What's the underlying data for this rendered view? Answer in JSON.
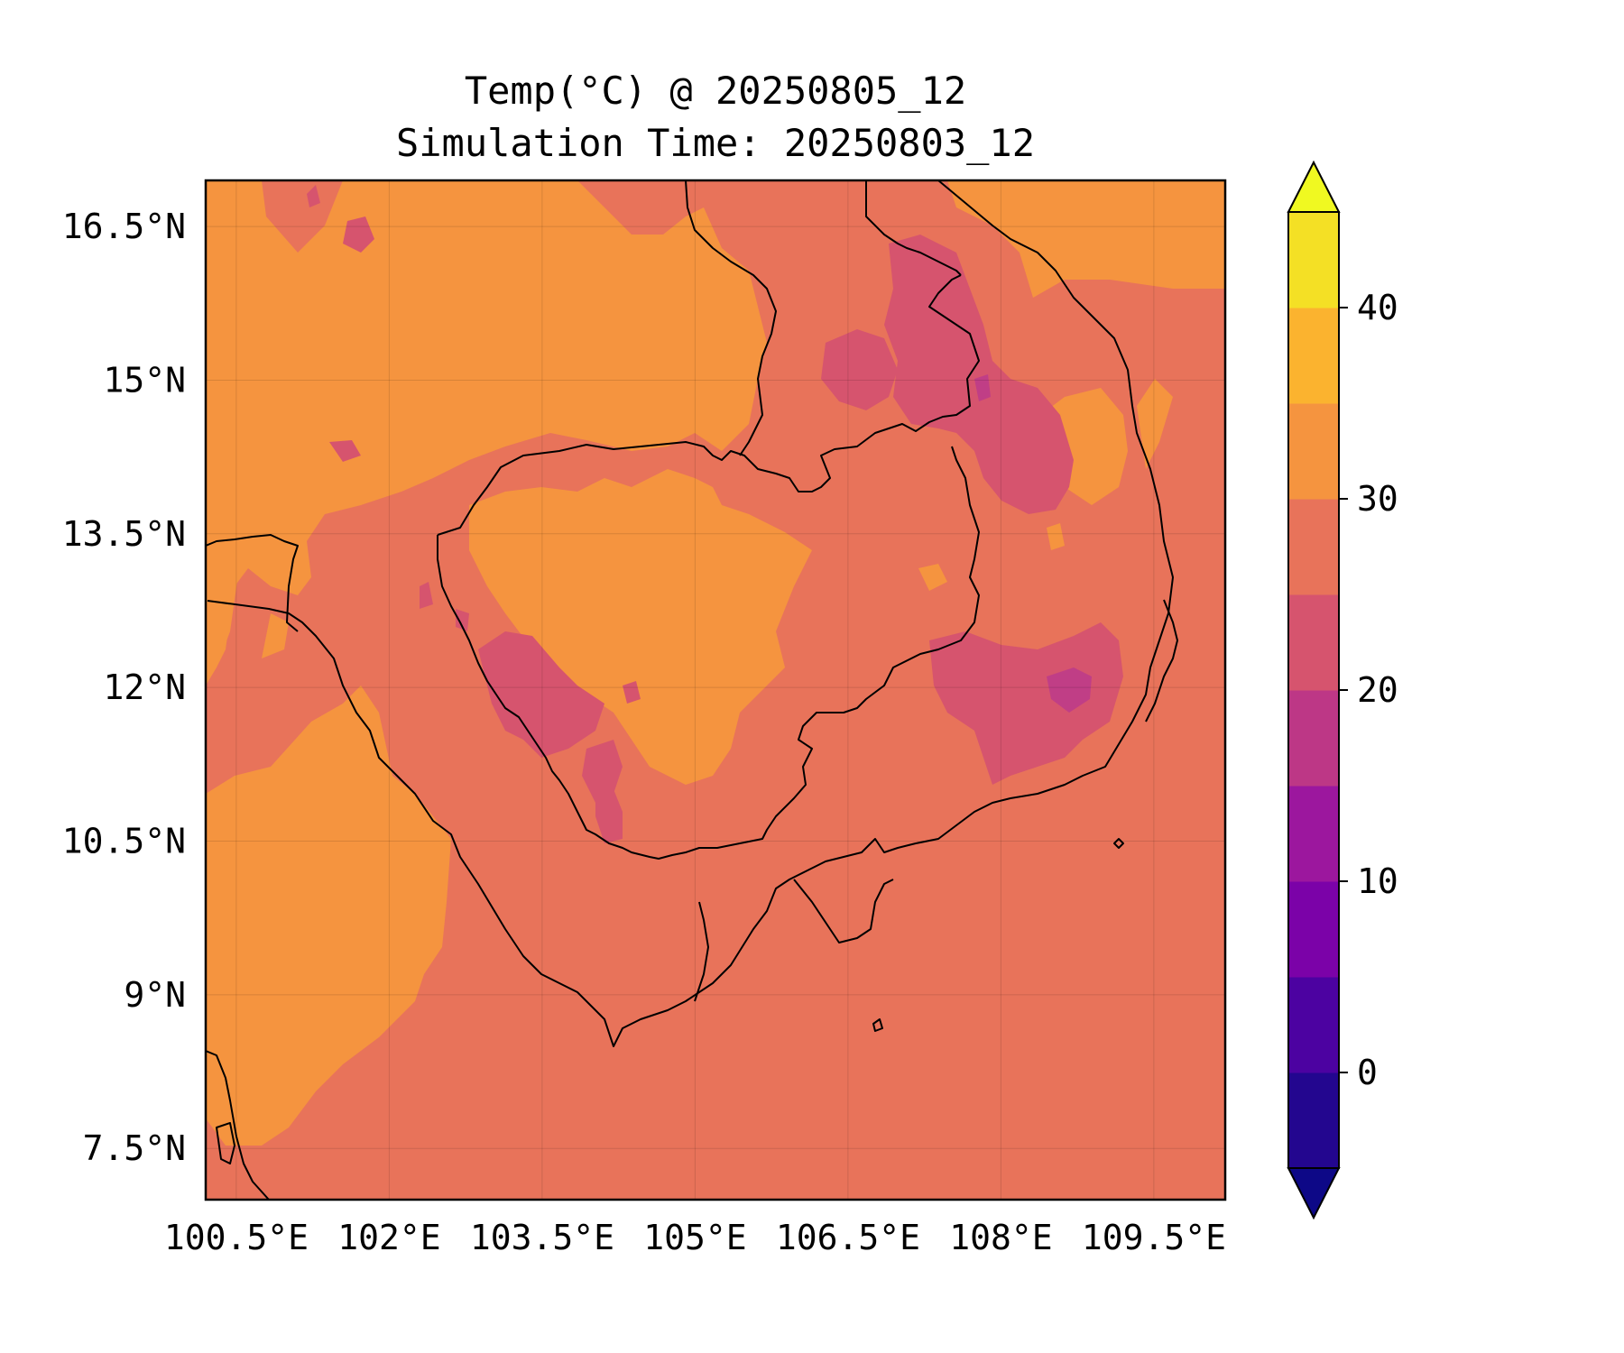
{
  "title": {
    "line1": "Temp(°C) @ 20250805_12",
    "line2": "Simulation Time: 20250803_12"
  },
  "map": {
    "lon_range": [
      100.2,
      110.2
    ],
    "lat_range": [
      7.0,
      16.95
    ],
    "x_ticks": [
      {
        "value": 100.5,
        "label": "100.5°E"
      },
      {
        "value": 102.0,
        "label": "102°E"
      },
      {
        "value": 103.5,
        "label": "103.5°E"
      },
      {
        "value": 105.0,
        "label": "105°E"
      },
      {
        "value": 106.5,
        "label": "106.5°E"
      },
      {
        "value": 108.0,
        "label": "108°E"
      },
      {
        "value": 109.5,
        "label": "109.5°E"
      }
    ],
    "y_ticks": [
      {
        "value": 16.5,
        "label": "16.5°N"
      },
      {
        "value": 15.0,
        "label": "15°N"
      },
      {
        "value": 13.5,
        "label": "13.5°N"
      },
      {
        "value": 12.0,
        "label": "12°N"
      },
      {
        "value": 10.5,
        "label": "10.5°N"
      },
      {
        "value": 9.0,
        "label": "9°N"
      },
      {
        "value": 7.5,
        "label": "7.5°N"
      }
    ],
    "gridlines": true,
    "background_fill": "#e8735a",
    "field_colors": {
      "25-30": "#e8735a",
      "30-35": "#f5943f",
      "20-25": "#d6546e",
      "15-20": "#c03e86"
    }
  },
  "colorbar": {
    "type": "contour levels",
    "extend": "both",
    "levels": [
      -5,
      0,
      5,
      10,
      15,
      20,
      25,
      30,
      35,
      40,
      45
    ],
    "colors": [
      "#23068f",
      "#4c02a1",
      "#7b02a8",
      "#9c179e",
      "#bd3786",
      "#d6546e",
      "#e8735a",
      "#f5943f",
      "#fbb32f",
      "#f4e025"
    ],
    "under_color": "#0d0887",
    "over_color": "#f0f921",
    "ticks": [
      {
        "value": 0,
        "label": "0"
      },
      {
        "value": 10,
        "label": "10"
      },
      {
        "value": 20,
        "label": "20"
      },
      {
        "value": 30,
        "label": "30"
      },
      {
        "value": 40,
        "label": "40"
      }
    ]
  }
}
